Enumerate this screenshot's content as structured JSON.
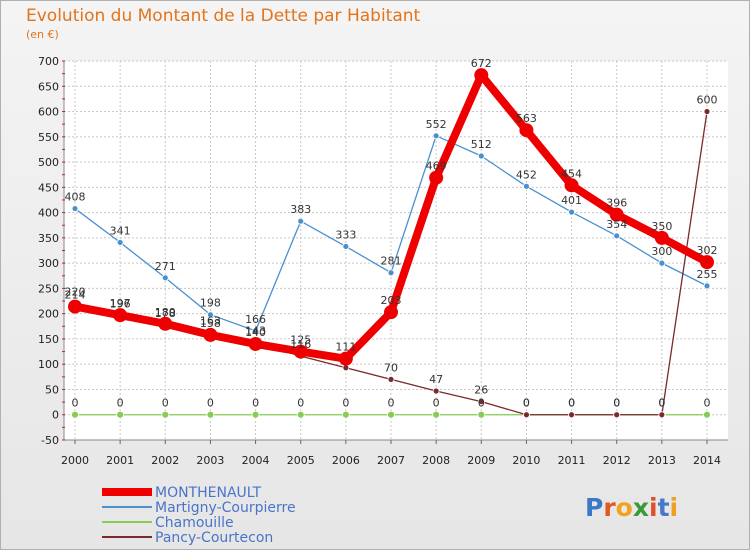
{
  "title": "Evolution du Montant de la Dette par Habitant",
  "subtitle": "(en €)",
  "logo": "Proxiti",
  "chart_data": {
    "type": "line",
    "title": "Evolution du Montant de la Dette par Habitant",
    "ylabel": "(en €)",
    "xlabel": "",
    "ylim": [
      -50,
      700
    ],
    "y_ticks": [
      -50,
      0,
      50,
      100,
      150,
      200,
      250,
      300,
      350,
      400,
      450,
      500,
      550,
      600,
      650,
      700
    ],
    "x": [
      "2000",
      "2001",
      "2002",
      "2003",
      "2004",
      "2005",
      "2006",
      "2007",
      "2008",
      "2009",
      "2010",
      "2011",
      "2012",
      "2013",
      "2014"
    ],
    "grid": true,
    "legend": "bottom-left",
    "series": [
      {
        "name": "MONTHENAULT",
        "color": "#ee0000",
        "values": [
          214,
          197,
          180,
          158,
          140,
          125,
          111,
          203,
          469,
          672,
          563,
          454,
          396,
          350,
          302
        ],
        "labels": [
          "214",
          "197",
          "180",
          "158",
          "140",
          "125",
          "111",
          "203",
          "469",
          "672",
          "563",
          "454",
          "396",
          "350",
          "302"
        ]
      },
      {
        "name": "Martigny-Courpierre",
        "color": "#4a90d0",
        "values": [
          408,
          341,
          271,
          198,
          166,
          383,
          333,
          281,
          552,
          512,
          452,
          401,
          354,
          300,
          255
        ],
        "labels": [
          "408",
          "341",
          "271",
          "198",
          "166",
          "383",
          "333",
          "281",
          "552",
          "512",
          "452",
          "401",
          "354",
          "300",
          "255"
        ]
      },
      {
        "name": "Chamouille",
        "color": "#88cc55",
        "values": [
          0,
          0,
          0,
          0,
          0,
          0,
          0,
          0,
          0,
          0,
          0,
          0,
          0,
          0,
          0
        ],
        "labels": [
          "0",
          "0",
          "0",
          "0",
          "0",
          "0",
          "0",
          "0",
          "0",
          "0",
          "0",
          "0",
          "0",
          "0",
          "0"
        ]
      },
      {
        "name": "Pancy-Courtecon",
        "color": "#7a2a2a",
        "values": [
          220,
          196,
          178,
          163,
          143,
          116,
          93,
          70,
          47,
          26,
          0,
          0,
          0,
          0,
          600
        ],
        "labels": [
          "220",
          "196",
          "178",
          "163",
          "143",
          "116",
          "",
          "70",
          "47",
          "26",
          "0",
          "0",
          "0",
          "0",
          "600"
        ]
      }
    ]
  }
}
